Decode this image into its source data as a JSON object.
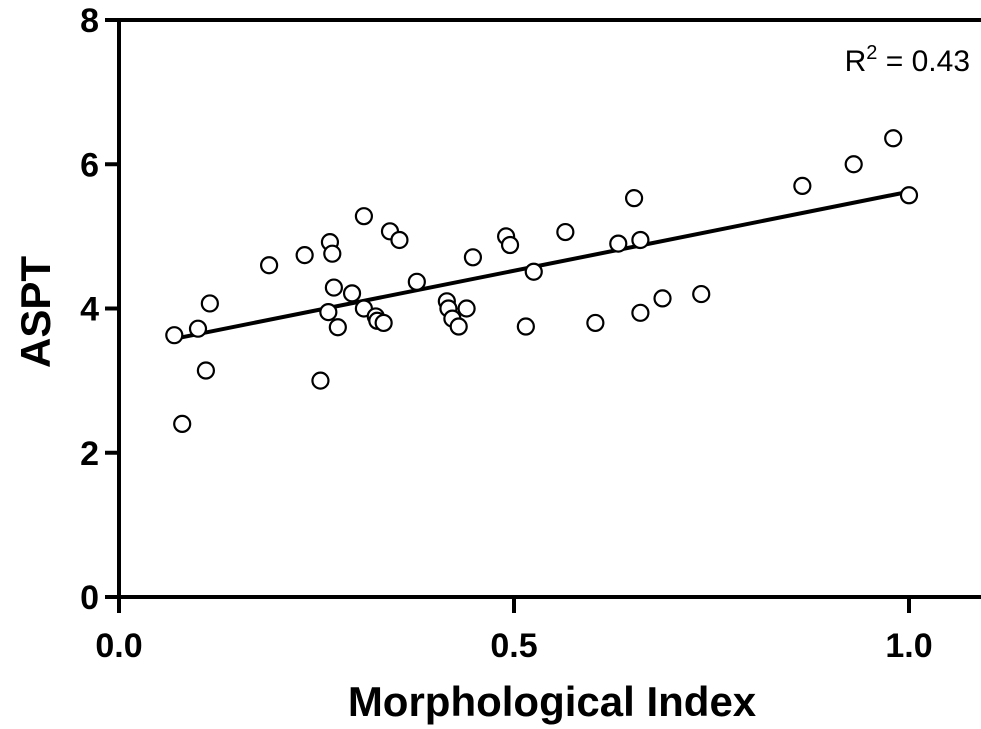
{
  "chart_data": {
    "type": "scatter",
    "title": "",
    "xlabel": "Morphological Index",
    "ylabel": "ASPT",
    "xlim": [
      0.0,
      1.1
    ],
    "ylim": [
      0,
      8
    ],
    "xticks": [
      0.0,
      0.5,
      1.0
    ],
    "xtick_labels": [
      "0.0",
      "0.5",
      "1.0"
    ],
    "yticks": [
      0,
      2,
      4,
      6,
      8
    ],
    "ytick_labels": [
      "0",
      "2",
      "4",
      "6",
      "8"
    ],
    "grid": false,
    "legend": "none",
    "marker": "open-circle",
    "annotation": {
      "r_label": "R",
      "r_sup": "2",
      "r_rest": " = 0.43",
      "position": "top-right"
    },
    "fit_line": {
      "x": [
        0.07,
        1.0
      ],
      "y": [
        3.58,
        5.62
      ]
    },
    "series": [
      {
        "points": [
          [
            0.07,
            3.63
          ],
          [
            0.08,
            2.4
          ],
          [
            0.1,
            3.72
          ],
          [
            0.11,
            3.14
          ],
          [
            0.115,
            4.07
          ],
          [
            0.19,
            4.6
          ],
          [
            0.235,
            4.74
          ],
          [
            0.255,
            3.0
          ],
          [
            0.265,
            3.95
          ],
          [
            0.267,
            4.92
          ],
          [
            0.27,
            4.76
          ],
          [
            0.272,
            4.29
          ],
          [
            0.277,
            3.74
          ],
          [
            0.295,
            4.21
          ],
          [
            0.31,
            5.28
          ],
          [
            0.31,
            4.0
          ],
          [
            0.325,
            3.89
          ],
          [
            0.327,
            3.83
          ],
          [
            0.335,
            3.8
          ],
          [
            0.343,
            5.07
          ],
          [
            0.355,
            4.95
          ],
          [
            0.377,
            4.37
          ],
          [
            0.415,
            4.1
          ],
          [
            0.417,
            4.0
          ],
          [
            0.422,
            3.86
          ],
          [
            0.43,
            3.75
          ],
          [
            0.44,
            4.0
          ],
          [
            0.448,
            4.71
          ],
          [
            0.49,
            5.0
          ],
          [
            0.495,
            4.88
          ],
          [
            0.515,
            3.75
          ],
          [
            0.525,
            4.51
          ],
          [
            0.565,
            5.06
          ],
          [
            0.603,
            3.8
          ],
          [
            0.632,
            4.9
          ],
          [
            0.652,
            5.53
          ],
          [
            0.66,
            4.95
          ],
          [
            0.66,
            3.94
          ],
          [
            0.688,
            4.14
          ],
          [
            0.737,
            4.2
          ],
          [
            0.865,
            5.7
          ],
          [
            0.93,
            6.0
          ],
          [
            0.98,
            6.36
          ],
          [
            1.0,
            5.57
          ]
        ]
      }
    ]
  }
}
